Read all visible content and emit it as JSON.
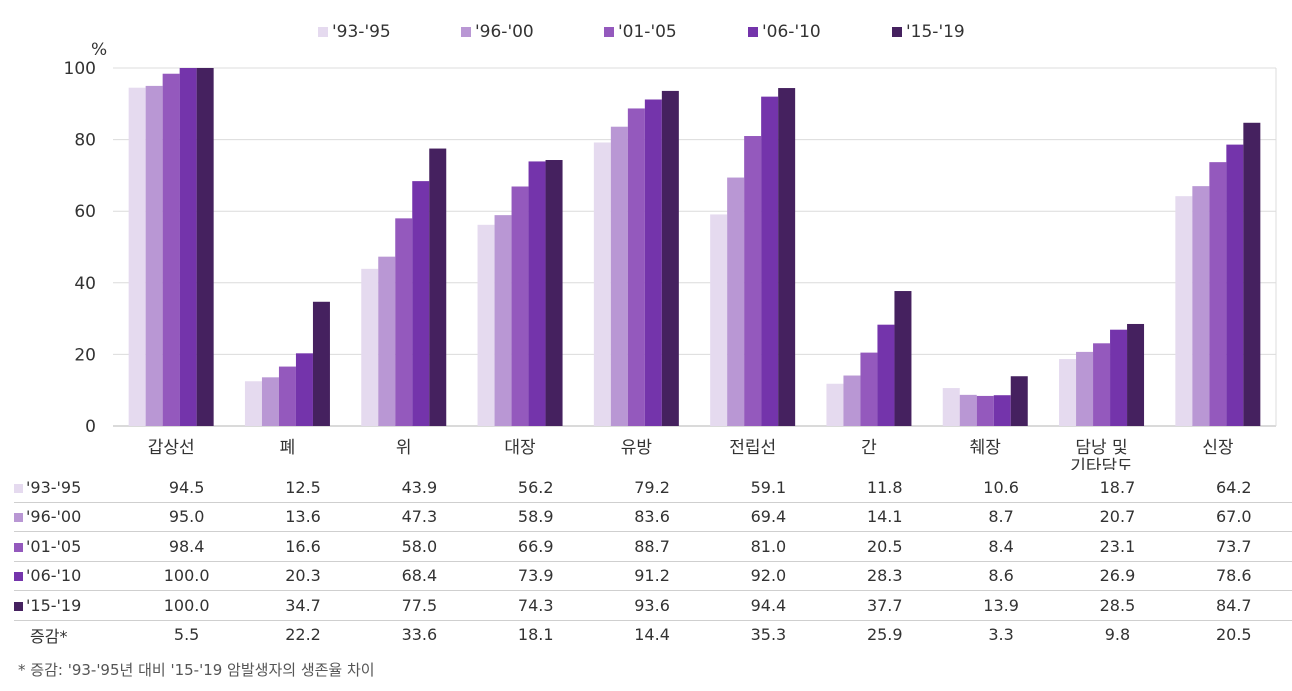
{
  "chart_data": {
    "type": "bar",
    "y_unit": "%",
    "ylim": [
      0,
      100
    ],
    "yticks": [
      "0",
      "20",
      "40",
      "60",
      "80",
      "100"
    ],
    "grid": true,
    "legend_position": "top-center",
    "categories": [
      "갑상선",
      "폐",
      "위",
      "대장",
      "유방",
      "전립선",
      "간",
      "췌장",
      "담낭 및 기타담도",
      "신장"
    ],
    "series": [
      {
        "name": "'93-'95",
        "color": "#e5daef",
        "values": [
          94.5,
          12.5,
          43.9,
          56.2,
          79.2,
          59.1,
          11.8,
          10.6,
          18.7,
          64.2
        ]
      },
      {
        "name": "'96-'00",
        "color": "#b997d4",
        "values": [
          95.0,
          13.6,
          47.3,
          58.9,
          83.6,
          69.4,
          14.1,
          8.7,
          20.7,
          67.0
        ]
      },
      {
        "name": "'01-'05",
        "color": "#9459bd",
        "values": [
          98.4,
          16.6,
          58.0,
          66.9,
          88.7,
          81.0,
          20.5,
          8.4,
          23.1,
          73.7
        ]
      },
      {
        "name": "'06-'10",
        "color": "#7434ab",
        "values": [
          100.0,
          20.3,
          68.4,
          73.9,
          91.2,
          92.0,
          28.3,
          8.6,
          26.9,
          78.6
        ]
      },
      {
        "name": "'15-'19",
        "color": "#45215f",
        "values": [
          100.0,
          34.7,
          77.5,
          74.3,
          93.6,
          94.4,
          37.7,
          13.9,
          28.5,
          84.7
        ]
      }
    ],
    "change_row": {
      "label": "증감*",
      "values": [
        "5.5",
        "22.2",
        "33.6",
        "18.1",
        "14.4",
        "35.3",
        "25.9",
        "3.3",
        "9.8",
        "20.5"
      ]
    }
  },
  "footnote": "* 증감: '93-'95년 대비 '15-'19 암발생자의 생존율 차이"
}
